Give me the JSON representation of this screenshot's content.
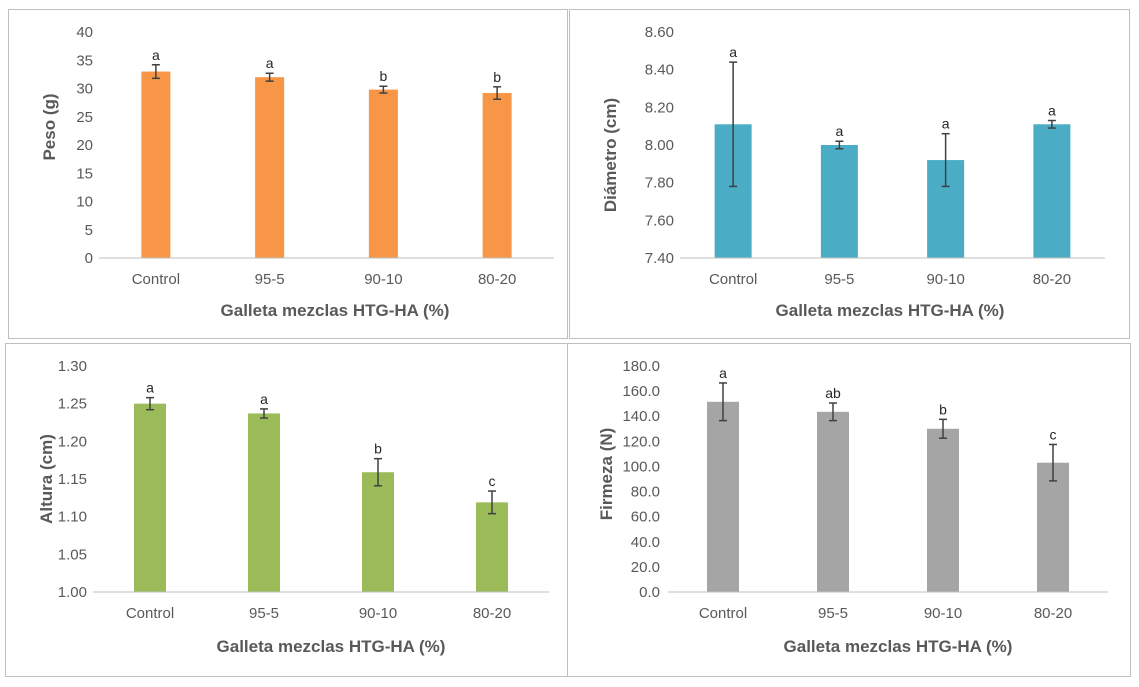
{
  "chart_data": [
    {
      "type": "bar",
      "title": "",
      "xlabel": "Galleta mezclas HTG-HA  (%)",
      "ylabel": "Peso (g)",
      "categories": [
        "Control",
        "95-5",
        "90-10",
        "80-20"
      ],
      "values": [
        33.0,
        32.0,
        29.8,
        29.2
      ],
      "errors": [
        1.2,
        0.7,
        0.6,
        1.1
      ],
      "letters": [
        "a",
        "a",
        "b",
        "b"
      ],
      "ylim": [
        0,
        40
      ],
      "ytick_labels": [
        "0",
        "5",
        "10",
        "15",
        "20",
        "25",
        "30",
        "35",
        "40"
      ],
      "color": "#F79646",
      "grid": false
    },
    {
      "type": "bar",
      "title": "",
      "xlabel": "Galleta mezclas HTG-HA  (%)",
      "ylabel": "Diámetro (cm)",
      "categories": [
        "Control",
        "95-5",
        "90-10",
        "80-20"
      ],
      "values": [
        8.11,
        8.0,
        7.92,
        8.11
      ],
      "errors": [
        0.33,
        0.02,
        0.14,
        0.02
      ],
      "letters": [
        "a",
        "a",
        "a",
        "a"
      ],
      "ylim": [
        7.4,
        8.6
      ],
      "ytick_labels": [
        "7.40",
        "7.60",
        "7.80",
        "8.00",
        "8.20",
        "8.40",
        "8.60"
      ],
      "color": "#4BACC6",
      "grid": false
    },
    {
      "type": "bar",
      "title": "",
      "xlabel": "Galleta mezclas HTG-HA  (%)",
      "ylabel": "Altura (cm)",
      "categories": [
        "Control",
        "95-5",
        "90-10",
        "80-20"
      ],
      "values": [
        1.25,
        1.237,
        1.159,
        1.119
      ],
      "errors": [
        0.008,
        0.006,
        0.018,
        0.015
      ],
      "letters": [
        "a",
        "a",
        "b",
        "c"
      ],
      "ylim": [
        1.0,
        1.3
      ],
      "ytick_labels": [
        "1.00",
        "1.05",
        "1.10",
        "1.15",
        "1.20",
        "1.25",
        "1.30"
      ],
      "color": "#9BBB59",
      "grid": false
    },
    {
      "type": "bar",
      "title": "",
      "xlabel": "Galleta mezclas HTG-HA  (%)",
      "ylabel": "Firmeza (N)",
      "categories": [
        "Control",
        "95-5",
        "90-10",
        "80-20"
      ],
      "values": [
        151.5,
        143.5,
        130.0,
        103.0
      ],
      "errors": [
        15.0,
        7.0,
        7.5,
        14.5
      ],
      "letters": [
        "a",
        "ab",
        "b",
        "c"
      ],
      "ylim": [
        0,
        180
      ],
      "ytick_labels": [
        "0.0",
        "20.0",
        "40.0",
        "60.0",
        "80.0",
        "100.0",
        "120.0",
        "140.0",
        "160.0",
        "180.0"
      ],
      "color": "#A5A5A5",
      "grid": false
    }
  ]
}
